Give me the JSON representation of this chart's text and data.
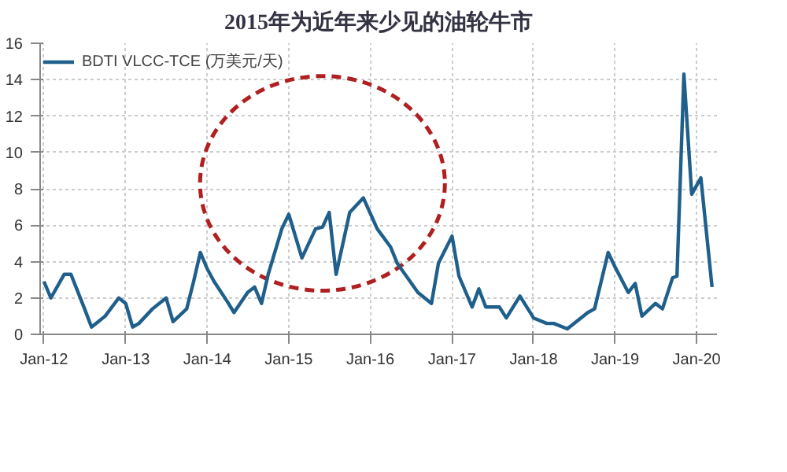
{
  "chart_data": {
    "type": "line",
    "title": "2015年为近年来少见的油轮牛市",
    "series": [
      {
        "name": "BDTI VLCC-TCE (万美元/天)",
        "color": "#1f5f8b",
        "x": [
          "2012-01-01",
          "2012-02-01",
          "2012-04-01",
          "2012-05-01",
          "2012-07-01",
          "2012-08-01",
          "2012-09-01",
          "2012-10-01",
          "2012-12-01",
          "2013-01-01",
          "2013-02-01",
          "2013-03-01",
          "2013-05-01",
          "2013-07-01",
          "2013-08-01",
          "2013-10-01",
          "2013-11-01",
          "2013-12-01",
          "2014-01-01",
          "2014-02-01",
          "2014-04-01",
          "2014-05-01",
          "2014-07-01",
          "2014-08-01",
          "2014-09-01",
          "2014-10-01",
          "2014-12-01",
          "2015-01-01",
          "2015-03-01",
          "2015-05-01",
          "2015-06-01",
          "2015-07-01",
          "2015-08-01",
          "2015-10-01",
          "2015-12-01",
          "2016-02-01",
          "2016-04-01",
          "2016-05-01",
          "2016-08-01",
          "2016-10-01",
          "2016-11-01",
          "2017-01-01",
          "2017-02-01",
          "2017-04-01",
          "2017-05-01",
          "2017-06-01",
          "2017-08-01",
          "2017-09-01",
          "2017-11-01",
          "2018-01-01",
          "2018-03-01",
          "2018-04-01",
          "2018-06-01",
          "2018-08-01",
          "2018-09-01",
          "2018-10-01",
          "2018-12-01",
          "2019-01-01",
          "2019-03-01",
          "2019-04-01",
          "2019-05-01",
          "2019-07-01",
          "2019-08-01",
          "2019-09-15",
          "2019-10-05",
          "2019-11-05",
          "2019-12-10",
          "2020-01-20",
          "2020-03-10"
        ],
        "values": [
          2.9,
          2.0,
          3.3,
          3.3,
          1.4,
          0.4,
          0.7,
          1.0,
          2.0,
          1.7,
          0.4,
          0.6,
          1.4,
          2.0,
          0.7,
          1.4,
          2.9,
          4.5,
          3.6,
          2.9,
          1.8,
          1.2,
          2.3,
          2.6,
          1.7,
          3.3,
          5.8,
          6.6,
          4.2,
          5.8,
          5.9,
          6.7,
          3.3,
          6.7,
          7.5,
          5.8,
          4.8,
          3.9,
          2.3,
          1.7,
          3.9,
          5.4,
          3.2,
          1.5,
          2.5,
          1.5,
          1.5,
          0.9,
          2.1,
          0.9,
          0.6,
          0.6,
          0.3,
          0.9,
          1.2,
          1.4,
          4.5,
          3.7,
          2.3,
          2.8,
          1.0,
          1.7,
          1.4,
          3.1,
          3.2,
          14.3,
          7.7,
          8.6,
          2.6
        ]
      }
    ],
    "xlim": [
      "2011-12-15",
      "2020-04-01"
    ],
    "xticks": [
      {
        "value": "2012-01",
        "label": "Jan-12"
      },
      {
        "value": "2013-01",
        "label": "Jan-13"
      },
      {
        "value": "2014-01",
        "label": "Jan-14"
      },
      {
        "value": "2015-01",
        "label": "Jan-15"
      },
      {
        "value": "2016-01",
        "label": "Jan-16"
      },
      {
        "value": "2017-01",
        "label": "Jan-17"
      },
      {
        "value": "2018-01",
        "label": "Jan-18"
      },
      {
        "value": "2019-01",
        "label": "Jan-19"
      },
      {
        "value": "2020-01",
        "label": "Jan-20"
      }
    ],
    "ylim": [
      0,
      16
    ],
    "yticks": [
      0,
      2,
      4,
      6,
      8,
      10,
      12,
      14,
      16
    ],
    "grid": true,
    "legend": "top left",
    "line_style": "solid"
  }
}
